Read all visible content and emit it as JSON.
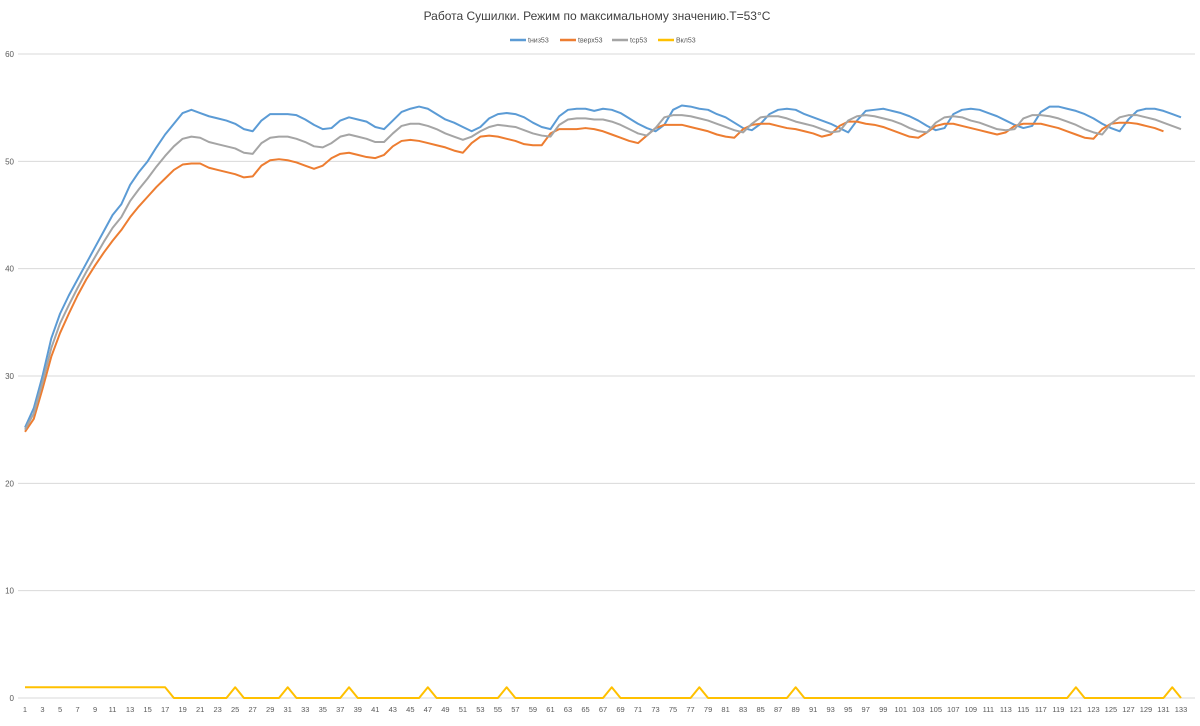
{
  "chart_data": {
    "type": "line",
    "title": "Работа Сушилки. Режим по максимальному значению.T=53°С",
    "xlabel": "",
    "ylabel": "",
    "ylim": [
      0,
      60
    ],
    "yticks": [
      0,
      10,
      20,
      30,
      40,
      50,
      60
    ],
    "x_count": 133,
    "x_tick_labels": [
      "1",
      "3",
      "5",
      "7",
      "9",
      "11",
      "13",
      "15",
      "17",
      "19",
      "21",
      "23",
      "25",
      "27",
      "29",
      "31",
      "33",
      "35",
      "37",
      "39",
      "41",
      "43",
      "45",
      "47",
      "49",
      "51",
      "53",
      "55",
      "57",
      "59",
      "61",
      "63",
      "65",
      "67",
      "69",
      "71",
      "73",
      "75",
      "77",
      "79",
      "81",
      "83",
      "85",
      "87",
      "89",
      "91",
      "93",
      "95",
      "97",
      "99",
      "101",
      "103",
      "105",
      "107",
      "109",
      "111",
      "113",
      "115",
      "117",
      "119",
      "121",
      "123",
      "125",
      "127",
      "129",
      "131",
      "133"
    ],
    "grid": true,
    "legend_position": "top",
    "series": [
      {
        "name": "tниз53",
        "color": "#5b9bd5",
        "values": [
          25.2,
          27.0,
          30.0,
          33.5,
          35.8,
          37.5,
          39.0,
          40.5,
          42.0,
          43.5,
          45.0,
          46.0,
          47.8,
          49.0,
          50.0,
          51.3,
          52.5,
          53.5,
          54.5,
          54.8,
          54.5,
          54.2,
          54.0,
          53.8,
          53.5,
          53.0,
          52.8,
          53.8,
          54.4,
          54.4,
          54.4,
          54.3,
          53.9,
          53.4,
          53.0,
          53.1,
          53.8,
          54.1,
          53.9,
          53.7,
          53.2,
          53.0,
          53.8,
          54.6,
          54.9,
          55.1,
          54.9,
          54.4,
          53.9,
          53.6,
          53.2,
          52.8,
          53.2,
          54.0,
          54.4,
          54.5,
          54.4,
          54.1,
          53.6,
          53.2,
          53.0,
          54.2,
          54.8,
          54.9,
          54.9,
          54.7,
          54.9,
          54.8,
          54.5,
          54.0,
          53.5,
          53.1,
          52.8,
          53.4,
          54.8,
          55.2,
          55.1,
          54.9,
          54.8,
          54.4,
          54.1,
          53.6,
          53.1,
          52.9,
          53.5,
          54.4,
          54.8,
          54.9,
          54.8,
          54.4,
          54.1,
          53.8,
          53.5,
          53.1,
          52.7,
          53.8,
          54.7,
          54.8,
          54.9,
          54.7,
          54.5,
          54.2,
          53.8,
          53.3,
          52.9,
          53.1,
          54.4,
          54.8,
          54.9,
          54.8,
          54.5,
          54.2,
          53.8,
          53.4,
          53.1,
          53.3,
          54.6,
          55.1,
          55.1,
          54.9,
          54.7,
          54.4,
          54.0,
          53.5,
          53.1,
          52.8,
          53.9,
          54.7,
          54.9,
          54.9,
          54.7,
          54.4,
          54.1
        ]
      },
      {
        "name": "tверх53",
        "color": "#ed7d31",
        "values": [
          24.8,
          26.0,
          28.8,
          31.8,
          34.0,
          35.8,
          37.5,
          39.0,
          40.3,
          41.5,
          42.6,
          43.6,
          44.8,
          45.8,
          46.7,
          47.6,
          48.4,
          49.2,
          49.7,
          49.8,
          49.8,
          49.4,
          49.2,
          49.0,
          48.8,
          48.5,
          48.6,
          49.6,
          50.1,
          50.2,
          50.1,
          49.9,
          49.6,
          49.3,
          49.6,
          50.3,
          50.7,
          50.8,
          50.6,
          50.4,
          50.3,
          50.6,
          51.4,
          51.9,
          52.0,
          51.9,
          51.7,
          51.5,
          51.3,
          51.0,
          50.8,
          51.7,
          52.3,
          52.4,
          52.3,
          52.1,
          51.9,
          51.6,
          51.5,
          51.5,
          52.6,
          53.0,
          53.0,
          53.0,
          53.1,
          53.0,
          52.8,
          52.5,
          52.2,
          51.9,
          51.7,
          52.4,
          53.1,
          53.4,
          53.4,
          53.4,
          53.2,
          53.0,
          52.8,
          52.5,
          52.3,
          52.2,
          53.0,
          53.4,
          53.5,
          53.5,
          53.3,
          53.1,
          53.0,
          52.8,
          52.6,
          52.3,
          52.5,
          53.3,
          53.7,
          53.7,
          53.5,
          53.4,
          53.2,
          52.9,
          52.6,
          52.3,
          52.2,
          52.7,
          53.3,
          53.5,
          53.5,
          53.3,
          53.1,
          52.9,
          52.7,
          52.5,
          52.7,
          53.3,
          53.5,
          53.5,
          53.5,
          53.3,
          53.1,
          52.8,
          52.5,
          52.2,
          52.1,
          53.0,
          53.5,
          53.6,
          53.6,
          53.5,
          53.3,
          53.1,
          52.8
        ]
      },
      {
        "name": "tср53",
        "color": "#a5a5a5",
        "values": [
          25.0,
          26.5,
          29.4,
          32.6,
          34.9,
          36.6,
          38.2,
          39.7,
          41.1,
          42.5,
          43.8,
          44.8,
          46.3,
          47.4,
          48.4,
          49.5,
          50.5,
          51.4,
          52.1,
          52.3,
          52.2,
          51.8,
          51.6,
          51.4,
          51.2,
          50.8,
          50.7,
          51.7,
          52.2,
          52.3,
          52.3,
          52.1,
          51.8,
          51.4,
          51.3,
          51.7,
          52.3,
          52.5,
          52.3,
          52.1,
          51.8,
          51.8,
          52.6,
          53.3,
          53.5,
          53.5,
          53.3,
          53.0,
          52.6,
          52.3,
          52.0,
          52.3,
          52.8,
          53.2,
          53.4,
          53.3,
          53.2,
          52.9,
          52.6,
          52.4,
          52.3,
          53.4,
          53.9,
          54.0,
          54.0,
          53.9,
          53.9,
          53.7,
          53.4,
          53.0,
          52.6,
          52.4,
          53.1,
          54.1,
          54.3,
          54.3,
          54.2,
          54.0,
          53.8,
          53.5,
          53.2,
          52.9,
          52.7,
          53.5,
          54.1,
          54.2,
          54.2,
          54.0,
          53.7,
          53.5,
          53.3,
          53.0,
          52.7,
          52.8,
          53.8,
          54.2,
          54.3,
          54.2,
          54.0,
          53.8,
          53.5,
          53.1,
          52.8,
          52.7,
          53.6,
          54.1,
          54.2,
          54.1,
          53.8,
          53.6,
          53.3,
          53.0,
          52.9,
          53.0,
          54.0,
          54.3,
          54.3,
          54.2,
          54.0,
          53.7,
          53.4,
          53.0,
          52.7,
          52.5,
          53.5,
          54.1,
          54.3,
          54.3,
          54.1,
          53.9,
          53.6,
          53.3,
          53.0
        ]
      },
      {
        "name": "Вкл53",
        "color": "#ffc000",
        "values": [
          1,
          1,
          1,
          1,
          1,
          1,
          1,
          1,
          1,
          1,
          1,
          1,
          1,
          1,
          1,
          1,
          1,
          0,
          0,
          0,
          0,
          0,
          0,
          0,
          1,
          0,
          0,
          0,
          0,
          0,
          1,
          0,
          0,
          0,
          0,
          0,
          0,
          1,
          0,
          0,
          0,
          0,
          0,
          0,
          0,
          0,
          1,
          0,
          0,
          0,
          0,
          0,
          0,
          0,
          0,
          1,
          0,
          0,
          0,
          0,
          0,
          0,
          0,
          0,
          0,
          0,
          0,
          1,
          0,
          0,
          0,
          0,
          0,
          0,
          0,
          0,
          0,
          1,
          0,
          0,
          0,
          0,
          0,
          0,
          0,
          0,
          0,
          0,
          1,
          0,
          0,
          0,
          0,
          0,
          0,
          0,
          0,
          0,
          0,
          0,
          0,
          0,
          0,
          0,
          0,
          0,
          0,
          0,
          0,
          0,
          0,
          0,
          0,
          0,
          0,
          0,
          0,
          0,
          0,
          0,
          1,
          0,
          0,
          0,
          0,
          0,
          0,
          0,
          0,
          0,
          0,
          1,
          0
        ]
      }
    ]
  }
}
